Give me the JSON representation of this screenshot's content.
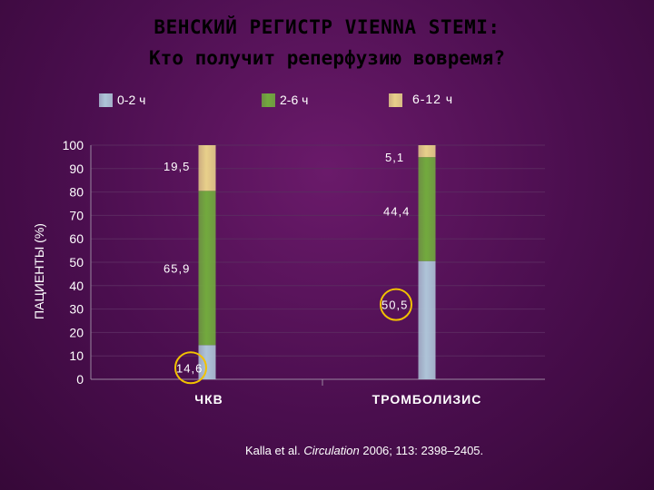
{
  "title": {
    "line1": "ВЕНСКИЙ РЕГИСТР VIENNA STEMI:",
    "line2": "Кто получит реперфузию вовремя?"
  },
  "chart_data": {
    "type": "bar",
    "stacked": true,
    "categories": [
      "ЧКВ",
      "ТРОМБОЛИЗИС"
    ],
    "series": [
      {
        "name": "0-2 ч",
        "color": "#aec4d8",
        "values": [
          14.6,
          50.5
        ]
      },
      {
        "name": "2-6 ч",
        "color": "#72aa3e",
        "values": [
          65.9,
          44.4
        ]
      },
      {
        "name": "6-12 ч",
        "color": "#e8d08a",
        "values": [
          19.5,
          5.1
        ]
      }
    ],
    "data_labels": [
      [
        "14,6",
        "65,9",
        "19,5"
      ],
      [
        "50,5",
        "44,4",
        "5,1"
      ]
    ],
    "highlighted_labels": [
      "14,6",
      "50,5"
    ],
    "highlight_color": "#f2c200",
    "ylabel": "ПАЦИЕНТЫ (%)",
    "xlabel": "",
    "ylim": [
      0,
      100
    ],
    "yticks": [
      0,
      10,
      20,
      30,
      40,
      50,
      60,
      70,
      80,
      90,
      100
    ],
    "grid": true,
    "legend": "top"
  },
  "citation": {
    "prefix": "Kalla et al. ",
    "journal": "Circulation",
    "suffix": " 2006; 113: 2398–2405."
  }
}
